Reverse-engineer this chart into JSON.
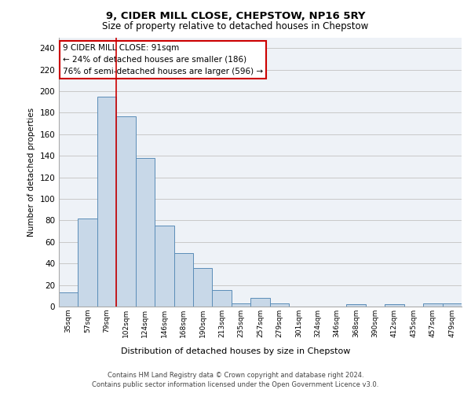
{
  "title1": "9, CIDER MILL CLOSE, CHEPSTOW, NP16 5RY",
  "title2": "Size of property relative to detached houses in Chepstow",
  "xlabel": "Distribution of detached houses by size in Chepstow",
  "ylabel": "Number of detached properties",
  "bar_color": "#c8d8e8",
  "bar_edge_color": "#5b8db8",
  "categories": [
    "35sqm",
    "57sqm",
    "79sqm",
    "102sqm",
    "124sqm",
    "146sqm",
    "168sqm",
    "190sqm",
    "213sqm",
    "235sqm",
    "257sqm",
    "279sqm",
    "301sqm",
    "324sqm",
    "346sqm",
    "368sqm",
    "390sqm",
    "412sqm",
    "435sqm",
    "457sqm",
    "479sqm"
  ],
  "values": [
    13,
    82,
    195,
    177,
    138,
    75,
    50,
    36,
    15,
    3,
    8,
    3,
    0,
    0,
    0,
    2,
    0,
    2,
    0,
    3,
    3
  ],
  "ylim": [
    0,
    250
  ],
  "yticks": [
    0,
    20,
    40,
    60,
    80,
    100,
    120,
    140,
    160,
    180,
    200,
    220,
    240
  ],
  "property_line_x": 2.5,
  "annotation_line1": "9 CIDER MILL CLOSE: 91sqm",
  "annotation_line2": "← 24% of detached houses are smaller (186)",
  "annotation_line3": "76% of semi-detached houses are larger (596) →",
  "footer1": "Contains HM Land Registry data © Crown copyright and database right 2024.",
  "footer2": "Contains public sector information licensed under the Open Government Licence v3.0.",
  "bg_color": "#eef2f7",
  "grid_color": "#c8c8c8",
  "red_line_color": "#cc0000"
}
